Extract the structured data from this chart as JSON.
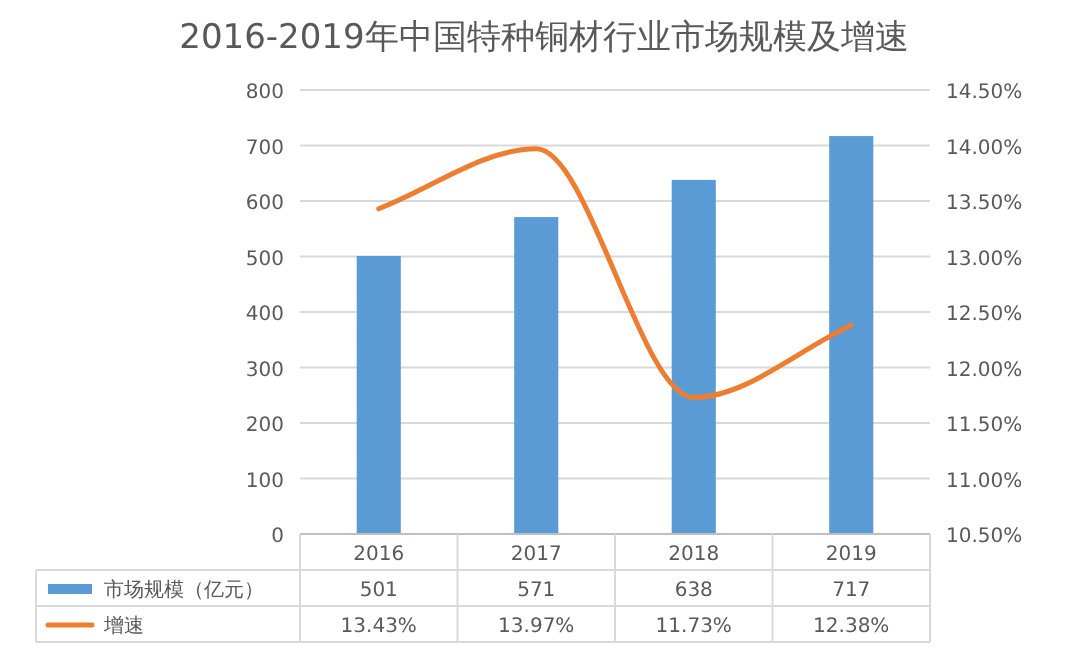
{
  "chart_data": {
    "type": "bar",
    "title": "2016-2019年中国特种铜材行业市场规模及增速",
    "categories": [
      "2016",
      "2017",
      "2018",
      "2019"
    ],
    "series": [
      {
        "name": "市场规模（亿元）",
        "color": "#5b9bd5",
        "values": [
          501,
          571,
          638,
          717
        ],
        "value_labels": [
          "501",
          "571",
          "638",
          "717"
        ]
      },
      {
        "name": "增速",
        "type": "line",
        "axis": "y2",
        "color": "#ed7d31",
        "values": [
          13.43,
          13.97,
          11.73,
          12.38
        ],
        "value_labels": [
          "13.43%",
          "13.97%",
          "11.73%",
          "12.38%"
        ]
      }
    ],
    "ylim": [
      0,
      800
    ],
    "yticks": [
      0,
      100,
      200,
      300,
      400,
      500,
      600,
      700,
      800
    ],
    "y2lim": [
      10.5,
      14.5
    ],
    "y2ticks": [
      {
        "value": 10.5,
        "label": "10.50%"
      },
      {
        "value": 11,
        "label": "11.00%"
      },
      {
        "value": 11.5,
        "label": "11.50%"
      },
      {
        "value": 12,
        "label": "12.00%"
      },
      {
        "value": 12.5,
        "label": "12.50%"
      },
      {
        "value": 13,
        "label": "13.00%"
      },
      {
        "value": 13.5,
        "label": "13.50%"
      },
      {
        "value": 14,
        "label": "14.00%"
      },
      {
        "value": 14.5,
        "label": "14.50%"
      }
    ],
    "grid": "y",
    "legend": "bottom",
    "marker": "none",
    "line_style": "solid"
  }
}
